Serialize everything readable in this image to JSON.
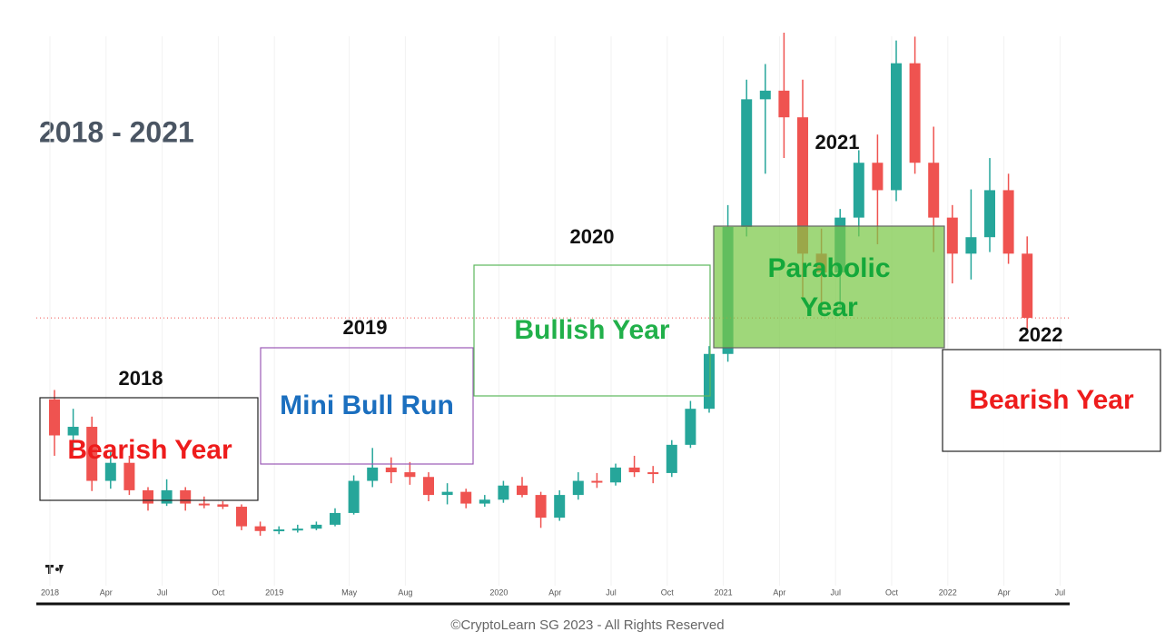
{
  "title": "2018 - 2021",
  "annotations": [
    {
      "year": "2018",
      "label": "Bearish Year",
      "color": "#ee1c1c"
    },
    {
      "year": "2019",
      "label": "Mini Bull Run",
      "color": "#1b6fbf"
    },
    {
      "year": "2020",
      "label": "Bullish Year",
      "color": "#21b04a"
    },
    {
      "year": "2021",
      "label": [
        "Parabolic",
        "Year"
      ],
      "color": "#14a83a"
    },
    {
      "year": "2022",
      "label": "Bearish Year",
      "color": "#ee1c1c"
    }
  ],
  "copyright": "©CryptoLearn SG 2023 - All Rights Reserved",
  "chart_data": {
    "type": "candlestick",
    "categories": [
      "2018",
      null,
      null,
      "Apr",
      null,
      null,
      "Jul",
      null,
      null,
      "Oct",
      null,
      null,
      "2019",
      null,
      null,
      null,
      "May",
      null,
      null,
      "Aug",
      null,
      null,
      null,
      null,
      "2020",
      null,
      null,
      "Apr",
      null,
      null,
      "Jul",
      null,
      null,
      "Oct",
      null,
      null,
      "2021",
      null,
      null,
      "Apr",
      null,
      null,
      "Jul",
      null,
      null,
      "Oct",
      null,
      null,
      "2022",
      null,
      null,
      "Apr",
      null,
      null,
      "Jul"
    ],
    "open": [
      23200,
      18600,
      19700,
      12800,
      15100,
      11600,
      9900,
      11600,
      9900,
      9800,
      9500,
      7000,
      6400,
      6600,
      6700,
      7200,
      8700,
      12800,
      14500,
      13900,
      13300,
      11000,
      11400,
      9900,
      10400,
      12200,
      11000,
      8100,
      11000,
      12800,
      12600,
      14500,
      13900,
      13800,
      17400,
      22000,
      29000,
      45200,
      61500,
      62600,
      59200,
      41800,
      39400,
      46400,
      53400,
      49900,
      66100,
      53400,
      46400,
      41800,
      43900,
      49900,
      41800,
      null,
      null
    ],
    "high": [
      24400,
      22000,
      21000,
      16500,
      16000,
      12000,
      13000,
      12000,
      10800,
      10200,
      9800,
      7600,
      7000,
      7200,
      7600,
      9300,
      13500,
      17000,
      15800,
      15200,
      13900,
      12500,
      11800,
      11000,
      12800,
      13300,
      11400,
      11600,
      13900,
      13800,
      15000,
      16000,
      14700,
      18000,
      23000,
      30000,
      48000,
      64000,
      66000,
      70000,
      64000,
      45000,
      47500,
      55000,
      57000,
      69000,
      69500,
      58000,
      48000,
      50000,
      54000,
      52000,
      44000,
      null,
      null
    ],
    "low": [
      16000,
      16500,
      11500,
      11800,
      11000,
      9000,
      9600,
      9000,
      9300,
      9200,
      6500,
      5800,
      6000,
      6200,
      6500,
      7000,
      8500,
      12000,
      12500,
      12300,
      10200,
      9800,
      9300,
      9500,
      10000,
      10700,
      6800,
      7700,
      10400,
      11900,
      12200,
      13300,
      12500,
      13300,
      17000,
      21500,
      28000,
      44000,
      52000,
      54000,
      36000,
      34000,
      35000,
      44000,
      43000,
      48500,
      52000,
      42000,
      38000,
      38500,
      42000,
      40500,
      32000,
      null,
      null
    ],
    "close": [
      18600,
      19700,
      12800,
      15100,
      11600,
      9900,
      11600,
      9900,
      9800,
      9500,
      7000,
      6400,
      6600,
      6700,
      7200,
      8700,
      12800,
      14500,
      13900,
      13300,
      11000,
      11400,
      9900,
      10400,
      12200,
      11000,
      8100,
      11000,
      12800,
      12600,
      14500,
      13900,
      13800,
      17400,
      22000,
      29000,
      45200,
      61500,
      62600,
      59200,
      41800,
      39400,
      46400,
      53400,
      49900,
      66100,
      53400,
      46400,
      41800,
      43900,
      49900,
      41800,
      33600,
      null,
      null
    ],
    "up_color": "#26a69a",
    "down_color": "#ef5350",
    "ylim": [
      0,
      70000
    ],
    "grid": true
  }
}
